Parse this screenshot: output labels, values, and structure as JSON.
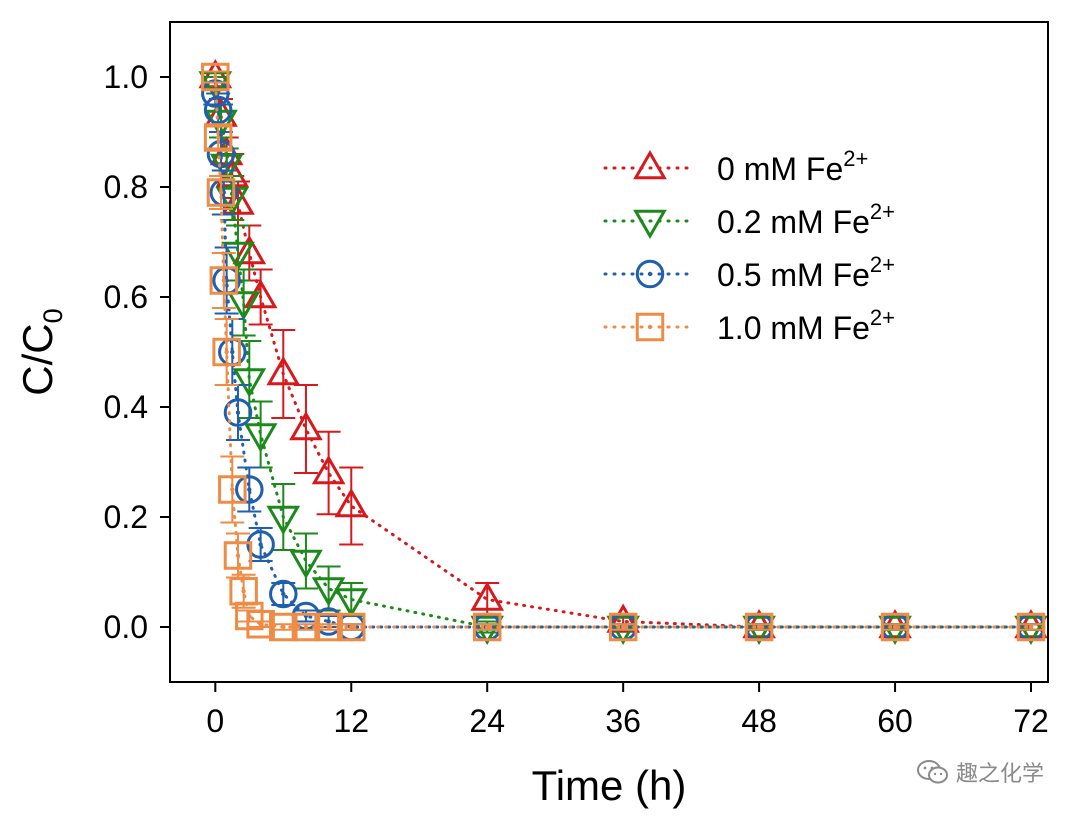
{
  "chart_data": {
    "type": "scatter",
    "xlabel": "Time (h)",
    "ylabel_main": "C/C",
    "ylabel_sub": "0",
    "xlim": [
      -4,
      73.5
    ],
    "ylim": [
      -0.1,
      1.1
    ],
    "xticks": [
      0,
      12,
      24,
      36,
      48,
      60,
      72
    ],
    "yticks": [
      0.0,
      0.2,
      0.4,
      0.6,
      0.8,
      1.0
    ],
    "ytick_labels": [
      "0.0",
      "0.2",
      "0.4",
      "0.6",
      "0.8",
      "1.0"
    ],
    "legend_position": "top-right",
    "series": [
      {
        "name": "0 mM Fe",
        "sup": "2+",
        "color": "#d7191c",
        "marker": "triangle-up",
        "x": [
          0,
          0.5,
          1,
          1.5,
          2,
          3,
          4,
          6,
          8,
          10,
          12,
          24,
          36,
          48,
          60,
          72
        ],
        "y": [
          1.0,
          0.93,
          0.86,
          0.82,
          0.77,
          0.68,
          0.6,
          0.46,
          0.36,
          0.28,
          0.22,
          0.05,
          0.01,
          0.0,
          0.0,
          0.0
        ],
        "err": [
          0.01,
          0.03,
          0.03,
          0.04,
          0.04,
          0.05,
          0.05,
          0.08,
          0.08,
          0.075,
          0.07,
          0.03,
          0.01,
          0.005,
          0.005,
          0.005
        ]
      },
      {
        "name": "0.2 mM Fe",
        "sup": "2+",
        "color": "#1b8a1b",
        "marker": "triangle-down",
        "x": [
          0,
          0.5,
          1,
          1.5,
          2,
          2.5,
          3,
          4,
          6,
          8,
          10,
          12,
          24,
          36,
          48,
          60,
          72
        ],
        "y": [
          0.99,
          0.92,
          0.84,
          0.78,
          0.68,
          0.59,
          0.45,
          0.35,
          0.2,
          0.12,
          0.07,
          0.05,
          0.0,
          0.0,
          0.0,
          0.0,
          0.0
        ],
        "err": [
          0.01,
          0.03,
          0.03,
          0.04,
          0.05,
          0.06,
          0.07,
          0.06,
          0.06,
          0.05,
          0.04,
          0.03,
          0.01,
          0.005,
          0.005,
          0.005,
          0.005
        ]
      },
      {
        "name": "0.5 mM Fe",
        "sup": "2+",
        "color": "#1f5fad",
        "marker": "circle",
        "x": [
          0,
          0.25,
          0.5,
          0.75,
          1,
          1.5,
          2,
          3,
          4,
          6,
          8,
          10,
          12,
          24,
          36,
          48,
          60,
          72
        ],
        "y": [
          0.97,
          0.94,
          0.86,
          0.79,
          0.63,
          0.5,
          0.39,
          0.25,
          0.15,
          0.06,
          0.02,
          0.01,
          0.0,
          0.0,
          0.0,
          0.0,
          0.0,
          0.0
        ],
        "err": [
          0.02,
          0.03,
          0.04,
          0.04,
          0.06,
          0.06,
          0.05,
          0.04,
          0.03,
          0.02,
          0.01,
          0.01,
          0.005,
          0.005,
          0.005,
          0.005,
          0.005,
          0.005
        ]
      },
      {
        "name": "1.0 mM Fe",
        "sup": "2+",
        "color": "#ee8c46",
        "marker": "square",
        "x": [
          0,
          0.25,
          0.5,
          0.75,
          1,
          1.5,
          2,
          2.5,
          3,
          4,
          6,
          8,
          10,
          12,
          24,
          36,
          48,
          60,
          72
        ],
        "y": [
          1.0,
          0.89,
          0.79,
          0.63,
          0.5,
          0.25,
          0.13,
          0.065,
          0.02,
          0.005,
          0.0,
          0.0,
          0.0,
          0.0,
          0.0,
          0.0,
          0.0,
          0.0,
          0.0
        ],
        "err": [
          0.01,
          0.02,
          0.03,
          0.05,
          0.06,
          0.06,
          0.04,
          0.03,
          0.01,
          0.005,
          0.005,
          0.005,
          0.005,
          0.005,
          0.005,
          0.005,
          0.005,
          0.005,
          0.005
        ]
      }
    ]
  },
  "watermark": {
    "text": "趣之化学",
    "icon": "wechat-icon"
  }
}
